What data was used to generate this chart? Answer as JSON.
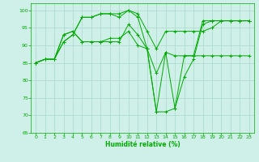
{
  "background_color": "#cef0e8",
  "grid_color": "#aad8c8",
  "line_color": "#00aa00",
  "marker": "+",
  "xlabel": "Humidité relative (%)",
  "xlabel_color": "#00aa00",
  "tick_color": "#00aa00",
  "xlim": [
    -0.5,
    23.5
  ],
  "ylim": [
    65,
    102
  ],
  "yticks": [
    65,
    70,
    75,
    80,
    85,
    90,
    95,
    100
  ],
  "xticks": [
    0,
    1,
    2,
    3,
    4,
    5,
    6,
    7,
    8,
    9,
    10,
    11,
    12,
    13,
    14,
    15,
    16,
    17,
    18,
    19,
    20,
    21,
    22,
    23
  ],
  "series": [
    [
      85,
      86,
      86,
      91,
      93,
      98,
      98,
      99,
      99,
      99,
      100,
      99,
      94,
      89,
      94,
      94,
      94,
      94,
      94,
      95,
      97,
      97,
      97,
      97
    ],
    [
      85,
      86,
      86,
      91,
      93,
      98,
      98,
      99,
      99,
      98,
      100,
      98,
      89,
      82,
      88,
      87,
      87,
      87,
      87,
      87,
      87,
      87,
      87,
      87
    ],
    [
      85,
      86,
      86,
      93,
      94,
      91,
      91,
      91,
      91,
      91,
      96,
      93,
      89,
      71,
      88,
      72,
      81,
      86,
      96,
      97,
      97,
      97,
      97,
      97
    ],
    [
      85,
      86,
      86,
      93,
      94,
      91,
      91,
      91,
      92,
      92,
      94,
      90,
      89,
      71,
      71,
      72,
      87,
      87,
      97,
      97,
      97,
      97,
      97,
      97
    ]
  ]
}
